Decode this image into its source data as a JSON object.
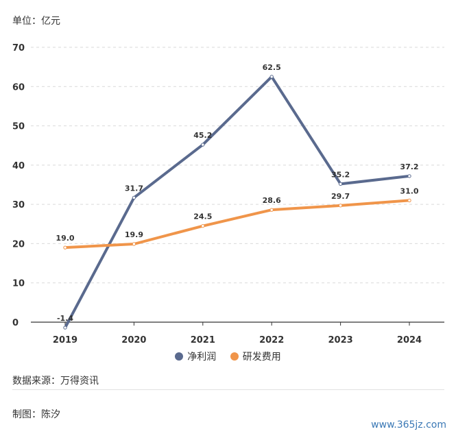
{
  "unit_label": "单位：亿元",
  "source_label": "数据来源：万得资讯",
  "maker_label": "制图：陈汐",
  "watermark": "www.365jz.com",
  "colors": {
    "net_profit": "#5a6a8e",
    "rnd": "#f0954a",
    "grid": "#d9d9d9",
    "axis": "#333333"
  },
  "chart_data": {
    "type": "line",
    "categories": [
      "2019",
      "2020",
      "2021",
      "2022",
      "2023",
      "2024"
    ],
    "ylim": [
      0,
      70
    ],
    "yticks": [
      0,
      10,
      20,
      30,
      40,
      50,
      60,
      70
    ],
    "grid": true,
    "legend_position": "bottom",
    "series": [
      {
        "name": "净利润",
        "values": [
          -1.4,
          31.7,
          45.2,
          62.5,
          35.2,
          37.2
        ],
        "labels": [
          "-1.4",
          "31.7",
          "45.2",
          "62.5",
          "35.2",
          "37.2"
        ]
      },
      {
        "name": "研发费用",
        "values": [
          19.0,
          19.9,
          24.5,
          28.6,
          29.7,
          31.0
        ],
        "labels": [
          "19.0",
          "19.9",
          "24.5",
          "28.6",
          "29.7",
          "31.0"
        ]
      }
    ]
  }
}
